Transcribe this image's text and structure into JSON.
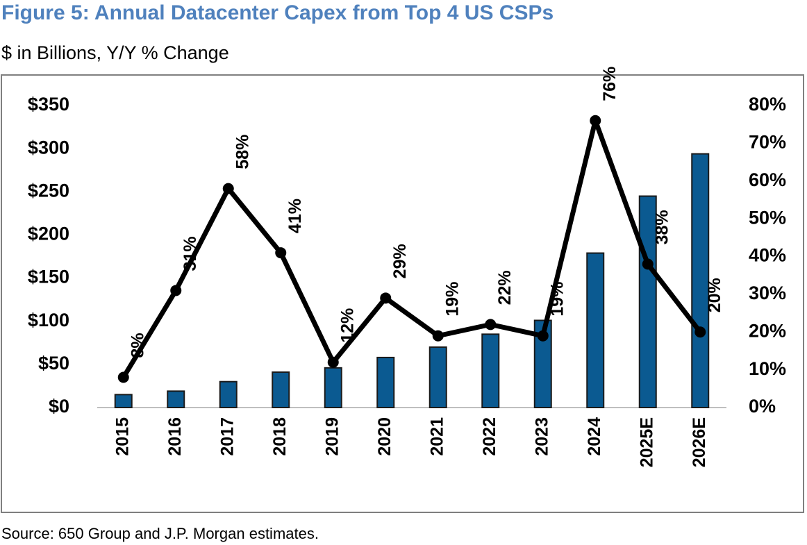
{
  "chart_data": {
    "type": "combo",
    "title": "Figure 5: Annual Datacenter Capex from Top 4 US CSPs",
    "subtitle": "$ in Billions, Y/Y % Change",
    "source": "Source: 650 Group and J.P. Morgan estimates.",
    "categories": [
      "2015",
      "2016",
      "2017",
      "2018",
      "2019",
      "2020",
      "2021",
      "2022",
      "2023",
      "2024",
      "2025E",
      "2026E"
    ],
    "series": [
      {
        "type": "bar",
        "color": "#0b5a91",
        "values": [
          15,
          19,
          30,
          41,
          46,
          58,
          70,
          85,
          101,
          179,
          245,
          294
        ]
      },
      {
        "type": "line",
        "axis": "y2",
        "color": "#000000",
        "values": [
          8,
          31,
          58,
          41,
          12,
          29,
          19,
          22,
          19,
          76,
          38,
          20
        ],
        "value_labels": [
          "8%",
          "31%",
          "58%",
          "41%",
          "12%",
          "29%",
          "19%",
          "22%",
          "19%",
          "76%",
          "38%",
          "20%"
        ]
      }
    ],
    "ylim": [
      0,
      350
    ],
    "yticks": [
      {
        "value": 0,
        "label": "$0"
      },
      {
        "value": 50,
        "label": "$50"
      },
      {
        "value": 100,
        "label": "$100"
      },
      {
        "value": 150,
        "label": "$150"
      },
      {
        "value": 200,
        "label": "$200"
      },
      {
        "value": 250,
        "label": "$250"
      },
      {
        "value": 300,
        "label": "$300"
      },
      {
        "value": 350,
        "label": "$350"
      }
    ],
    "y2lim": [
      0,
      80
    ],
    "y2ticks": [
      {
        "value": 0,
        "label": "0%"
      },
      {
        "value": 10,
        "label": "10%"
      },
      {
        "value": 20,
        "label": "20%"
      },
      {
        "value": 30,
        "label": "30%"
      },
      {
        "value": 40,
        "label": "40%"
      },
      {
        "value": 50,
        "label": "50%"
      },
      {
        "value": 60,
        "label": "60%"
      },
      {
        "value": 70,
        "label": "70%"
      },
      {
        "value": 80,
        "label": "80%"
      }
    ]
  }
}
